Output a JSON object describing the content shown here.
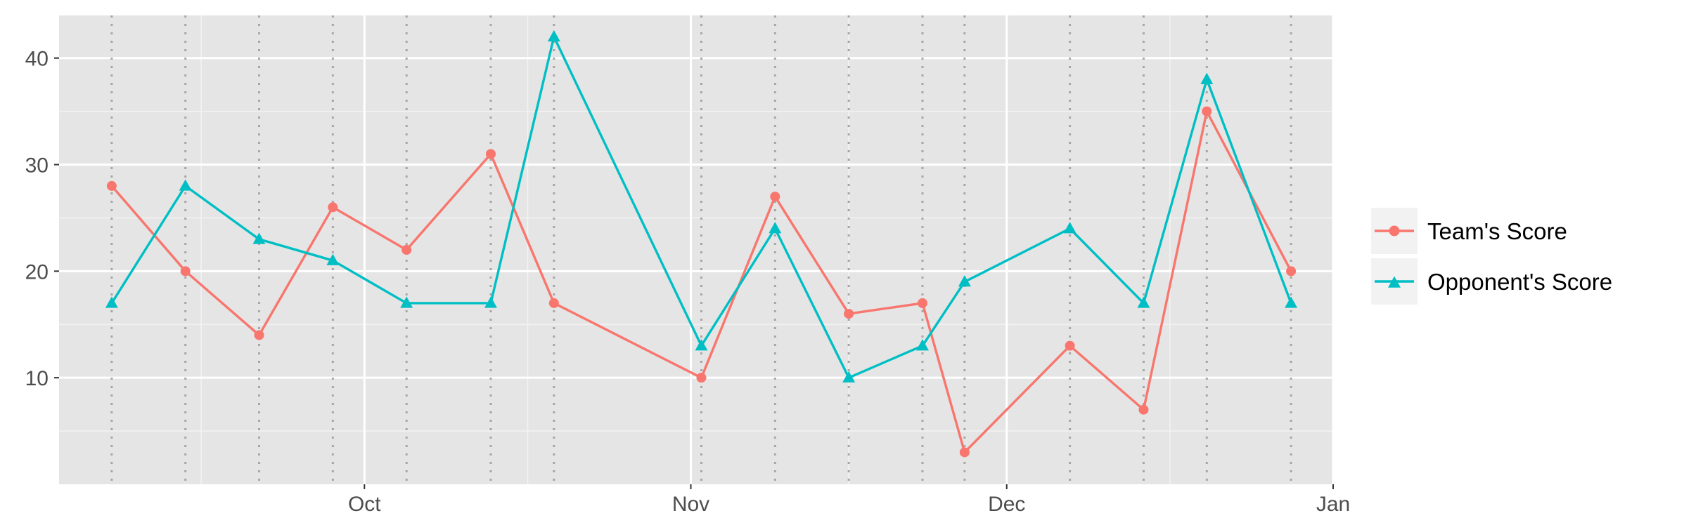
{
  "chart_data": {
    "type": "line",
    "title": "",
    "xlabel": "",
    "ylabel": "",
    "x_axis": {
      "type": "date",
      "range": [
        "2024-09-02",
        "2025-01-01"
      ],
      "ticks": [
        {
          "date": "2024-10-01",
          "label": "Oct"
        },
        {
          "date": "2024-11-01",
          "label": "Nov"
        },
        {
          "date": "2024-12-01",
          "label": "Dec"
        },
        {
          "date": "2025-01-01",
          "label": "Jan"
        }
      ]
    },
    "y_axis": {
      "range": [
        0,
        44
      ],
      "ticks": [
        10,
        20,
        30,
        40
      ],
      "minor_ticks": [
        5,
        15,
        25,
        35
      ]
    },
    "game_dates": [
      "2024-09-07",
      "2024-09-14",
      "2024-09-21",
      "2024-09-28",
      "2024-10-05",
      "2024-10-13",
      "2024-10-19",
      "2024-11-02",
      "2024-11-09",
      "2024-11-16",
      "2024-11-23",
      "2024-11-27",
      "2024-12-07",
      "2024-12-14",
      "2024-12-20",
      "2024-12-28"
    ],
    "series": [
      {
        "name": "Team's Score",
        "color": "#F8766D",
        "marker": "circle",
        "values": [
          28,
          20,
          14,
          26,
          22,
          31,
          17,
          10,
          27,
          16,
          17,
          3,
          13,
          7,
          35,
          20
        ]
      },
      {
        "name": "Opponent's Score",
        "color": "#00BFC4",
        "marker": "triangle",
        "values": [
          17,
          28,
          23,
          21,
          17,
          17,
          42,
          13,
          24,
          10,
          13,
          19,
          24,
          17,
          38,
          17
        ]
      }
    ],
    "panel_background": "#E5E5E5",
    "grid": true,
    "vertical_reference_lines": "dotted gray line at each game date",
    "legend_position": "right"
  }
}
